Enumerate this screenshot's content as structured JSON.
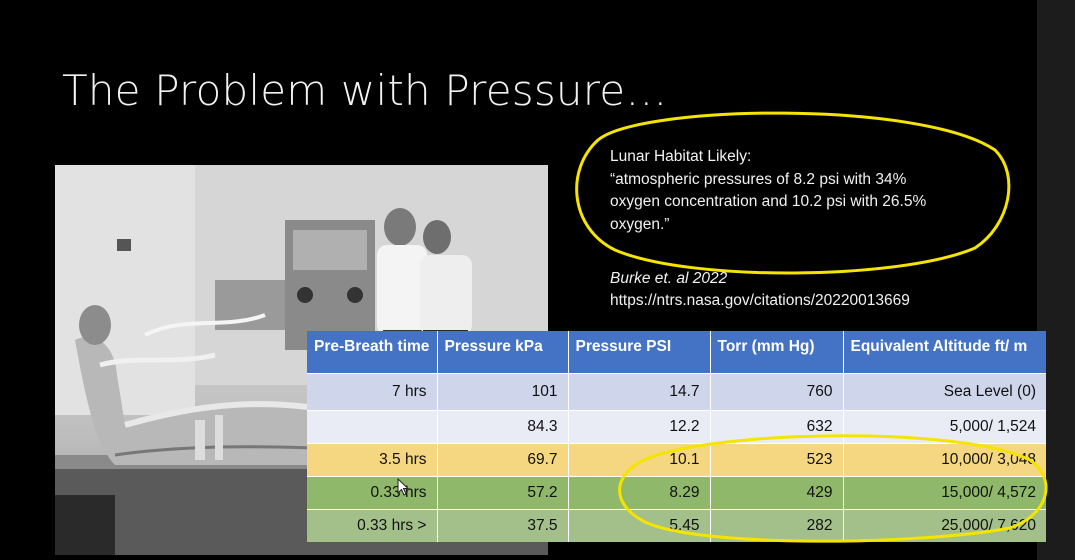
{
  "slide": {
    "title": "The Problem with Pressure…",
    "quote": {
      "line1": "Lunar Habitat Likely:",
      "line2": "“atmospheric pressures of 8.2 psi with 34%",
      "line3": "oxygen concentration and 10.2 psi with 26.5%",
      "line4": "oxygen.”"
    },
    "citation": {
      "author": "Burke et. al 2022",
      "url": "https://ntrs.nasa.gov/citations/20220013669"
    },
    "highlight_color": "#f5e400"
  },
  "table": {
    "headers": [
      "Pre-Breath time",
      "Pressure kPa",
      "Pressure PSI",
      "Torr (mm Hg)",
      "Equivalent Altitude ft/ m"
    ],
    "rows": [
      [
        "7 hrs",
        "101",
        "14.7",
        "760",
        "Sea Level (0)"
      ],
      [
        "",
        "84.3",
        "12.2",
        "632",
        "5,000/ 1,524"
      ],
      [
        "3.5 hrs",
        "69.7",
        "10.1",
        "523",
        "10,000/ 3,048"
      ],
      [
        "0.33 hrs",
        "57.2",
        "8.29",
        "429",
        "15,000/ 4,572"
      ],
      [
        "0.33 hrs >",
        "37.5",
        "5.45",
        "282",
        "25,000/ 7,620"
      ]
    ],
    "row_colors": [
      "#cfd5ea",
      "#e9ebf5",
      "#f5d781",
      "#8fb86b",
      "#a4c08a"
    ],
    "header_color": "#4472c4"
  }
}
